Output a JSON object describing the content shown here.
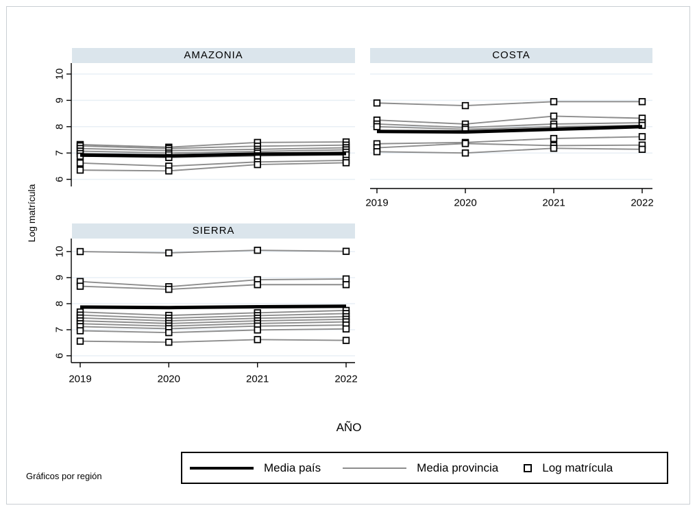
{
  "figure": {
    "note": "Gráficos por región",
    "colors": {
      "media_pais": "#000000",
      "media_provincia": "#8c8c8c",
      "marker_stroke": "#000000",
      "marker_fill": "#ffffff",
      "strip_bg": "#dbe5ec",
      "gridline": "#e8eff5",
      "axis": "#000000",
      "figure_border": "#c9ced3",
      "background": "#ffffff"
    },
    "legend": {
      "items": [
        {
          "label": "Media país",
          "symbol": "thick-black-line"
        },
        {
          "label": "Media provincia",
          "symbol": "thin-gray-line"
        },
        {
          "label": "Log matrícula",
          "symbol": "hollow-square-marker"
        }
      ]
    }
  },
  "chart_data": {
    "type": "line",
    "title": "",
    "xlabel": "AÑO",
    "ylabel": "Log matrícula",
    "x": [
      2019,
      2020,
      2021,
      2022
    ],
    "y_ticks": [
      6,
      7,
      8,
      9,
      10
    ],
    "ylim": [
      5.7,
      10.4
    ],
    "grid": "horizontal-light",
    "legend_position": "bottom",
    "facet_note": "Gráficos por región",
    "series_legend": [
      "Media país",
      "Media provincia",
      "Log matrícula"
    ],
    "panels": [
      {
        "title": "AMAZONIA",
        "show_y_axis": true,
        "show_x_axis": false,
        "media_pais": [
          6.92,
          6.89,
          6.96,
          6.98
        ],
        "provincias": [
          [
            7.32,
            7.22,
            7.4,
            7.42
          ],
          [
            7.27,
            7.17,
            7.26,
            7.3
          ],
          [
            7.17,
            7.09,
            7.14,
            7.2
          ],
          [
            7.07,
            7.0,
            7.06,
            7.12
          ],
          [
            6.98,
            6.93,
            6.99,
            7.03
          ],
          [
            6.88,
            6.83,
            6.89,
            6.93
          ],
          [
            6.62,
            6.5,
            6.66,
            6.72
          ],
          [
            6.35,
            6.32,
            6.56,
            6.63
          ]
        ]
      },
      {
        "title": "COSTA",
        "show_y_axis": false,
        "show_x_axis": true,
        "media_pais": [
          7.82,
          7.8,
          7.9,
          8.0
        ],
        "provincias": [
          [
            8.9,
            8.8,
            8.95,
            8.95
          ],
          [
            8.25,
            8.1,
            8.4,
            8.32
          ],
          [
            8.1,
            7.97,
            8.1,
            8.15
          ],
          [
            8.0,
            7.9,
            8.0,
            8.05
          ],
          [
            7.35,
            7.4,
            7.55,
            7.62
          ],
          [
            7.2,
            7.36,
            7.28,
            7.3
          ],
          [
            7.05,
            7.0,
            7.18,
            7.14
          ]
        ]
      },
      {
        "title": "SIERRA",
        "show_y_axis": true,
        "show_x_axis": true,
        "media_pais": [
          7.87,
          7.85,
          7.88,
          7.9
        ],
        "provincias": [
          [
            10.0,
            9.95,
            10.05,
            10.01
          ],
          [
            8.85,
            8.65,
            8.92,
            8.95
          ],
          [
            8.67,
            8.55,
            8.73,
            8.73
          ],
          [
            7.68,
            7.55,
            7.65,
            7.74
          ],
          [
            7.56,
            7.44,
            7.54,
            7.62
          ],
          [
            7.45,
            7.34,
            7.44,
            7.5
          ],
          [
            7.34,
            7.24,
            7.34,
            7.4
          ],
          [
            7.23,
            7.14,
            7.24,
            7.3
          ],
          [
            7.12,
            7.04,
            7.14,
            7.18
          ],
          [
            6.96,
            6.89,
            6.99,
            7.03
          ],
          [
            6.56,
            6.52,
            6.62,
            6.59
          ]
        ]
      }
    ]
  }
}
